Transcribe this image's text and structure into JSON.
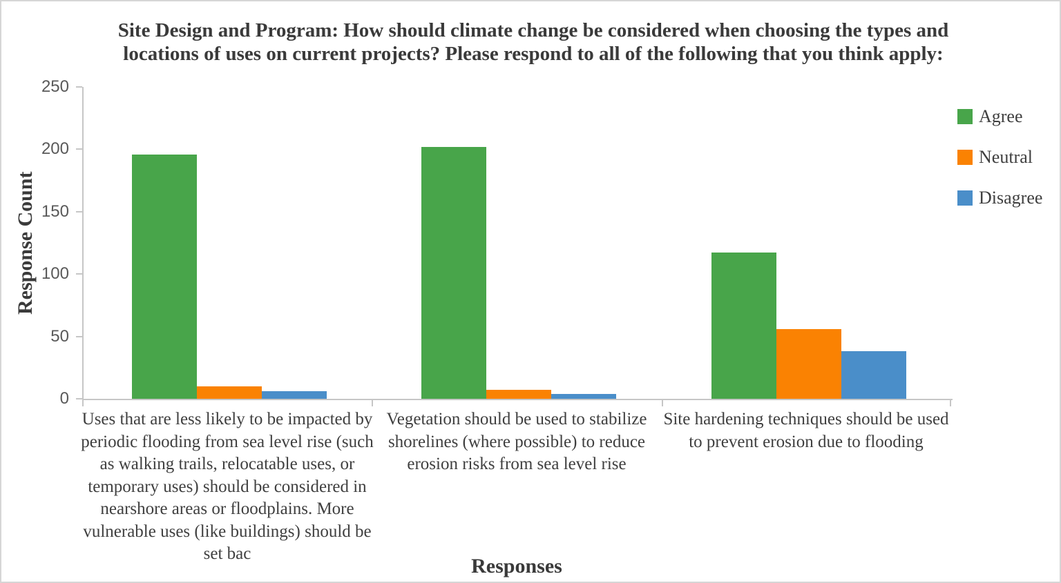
{
  "chart_data": {
    "type": "bar",
    "title": "Site Design and Program: How should climate change be considered when choosing the types and locations of uses on current projects? Please respond to all of the following that you think apply:",
    "xlabel": "Responses",
    "ylabel": "Response Count",
    "ylim": [
      0,
      250
    ],
    "y_ticks": [
      0,
      50,
      100,
      150,
      200,
      250
    ],
    "grid": false,
    "legend_position": "right",
    "categories": [
      "Uses that are less likely to be impacted by periodic flooding from sea level rise (such as walking trails, relocatable uses, or temporary uses) should be considered in nearshore areas or floodplains. More vulnerable uses (like buildings) should be set bac",
      "Vegetation should be used to stabilize shorelines (where possible) to reduce erosion risks from sea level rise",
      "Site hardening techniques should be used to prevent erosion due to flooding"
    ],
    "series": [
      {
        "name": "Agree",
        "color": "#48A54A",
        "values": [
          196,
          202,
          117
        ]
      },
      {
        "name": "Neutral",
        "color": "#FA8202",
        "values": [
          10,
          7,
          56
        ]
      },
      {
        "name": "Disagree",
        "color": "#4A8EC9",
        "values": [
          6,
          4,
          38
        ]
      }
    ]
  },
  "style": {
    "axis_color": "#c6c6c6",
    "tick_label_color": "#595959",
    "text_color": "#3a3a3a",
    "border_color": "#d6d6d6",
    "background": "#ffffff"
  }
}
